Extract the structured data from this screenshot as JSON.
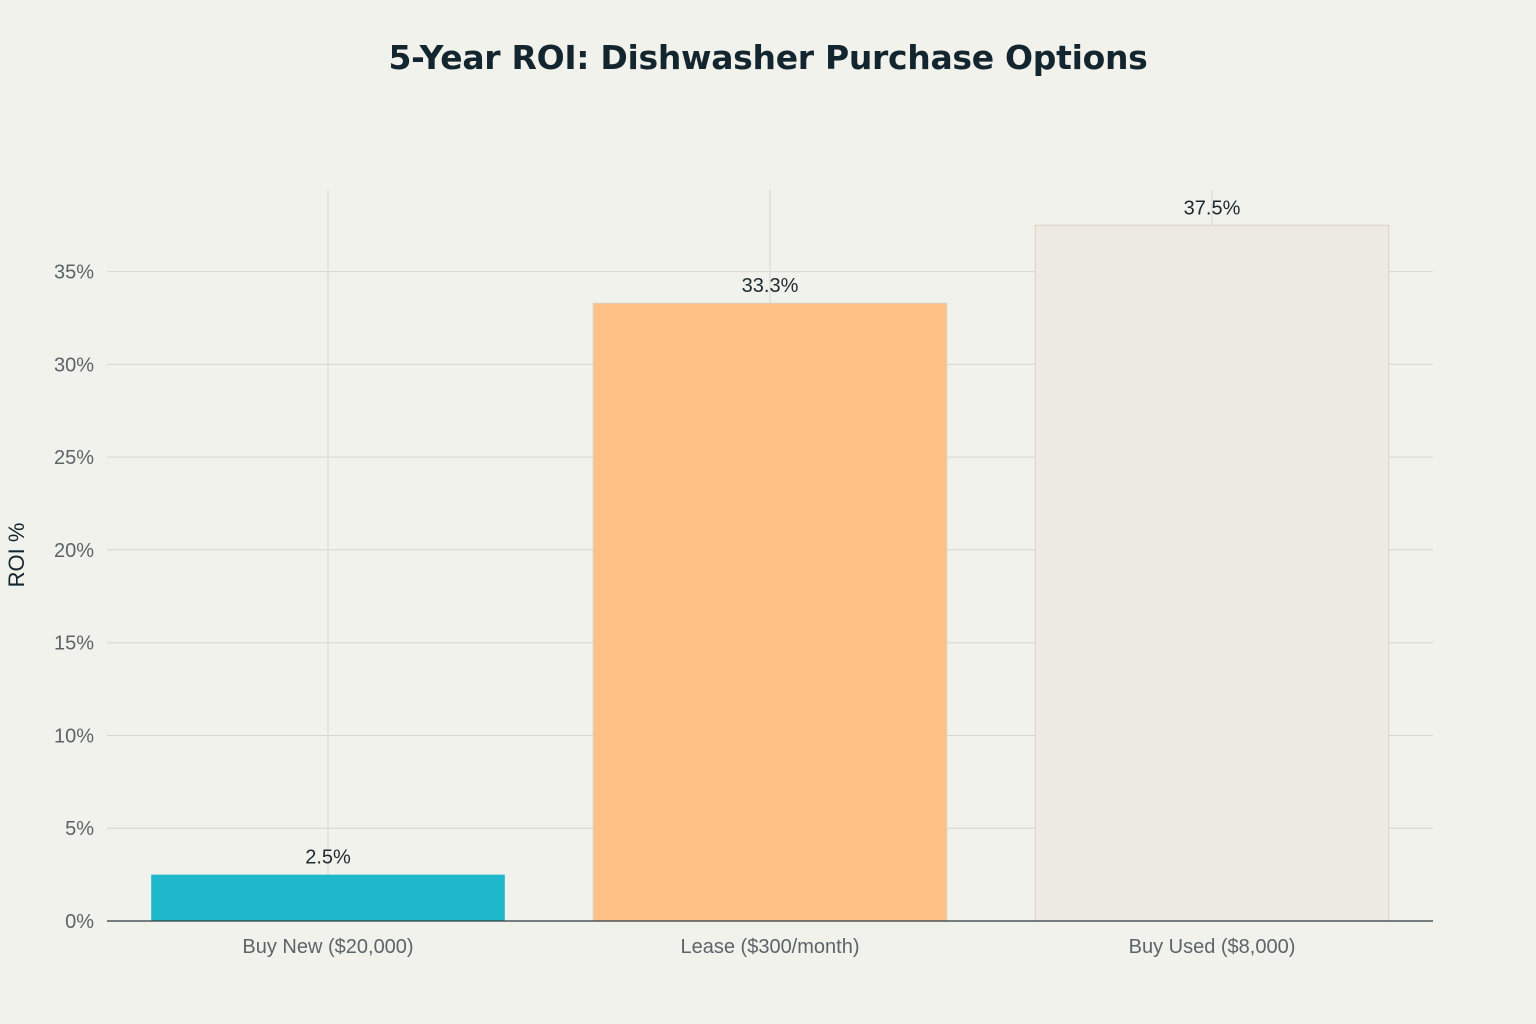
{
  "chart_data": {
    "type": "bar",
    "title": "5-Year ROI: Dishwasher Purchase Options",
    "xlabel": "",
    "ylabel": "ROI %",
    "categories": [
      "Buy New ($20,000)",
      "Lease ($300/month)",
      "Buy Used ($8,000)"
    ],
    "values": [
      2.5,
      33.3,
      37.5
    ],
    "data_labels": [
      "2.5%",
      "33.3%",
      "37.5%"
    ],
    "colors": [
      "#1fb8cd",
      "#ffc185",
      "#eceae1"
    ],
    "ylim": [
      0,
      39.4
    ],
    "yticks": [
      0,
      5,
      10,
      15,
      20,
      25,
      30,
      35
    ],
    "ytick_labels": [
      "0%",
      "5%",
      "10%",
      "15%",
      "20%",
      "25%",
      "30%",
      "35%"
    ],
    "grid": true,
    "legend": "none"
  }
}
